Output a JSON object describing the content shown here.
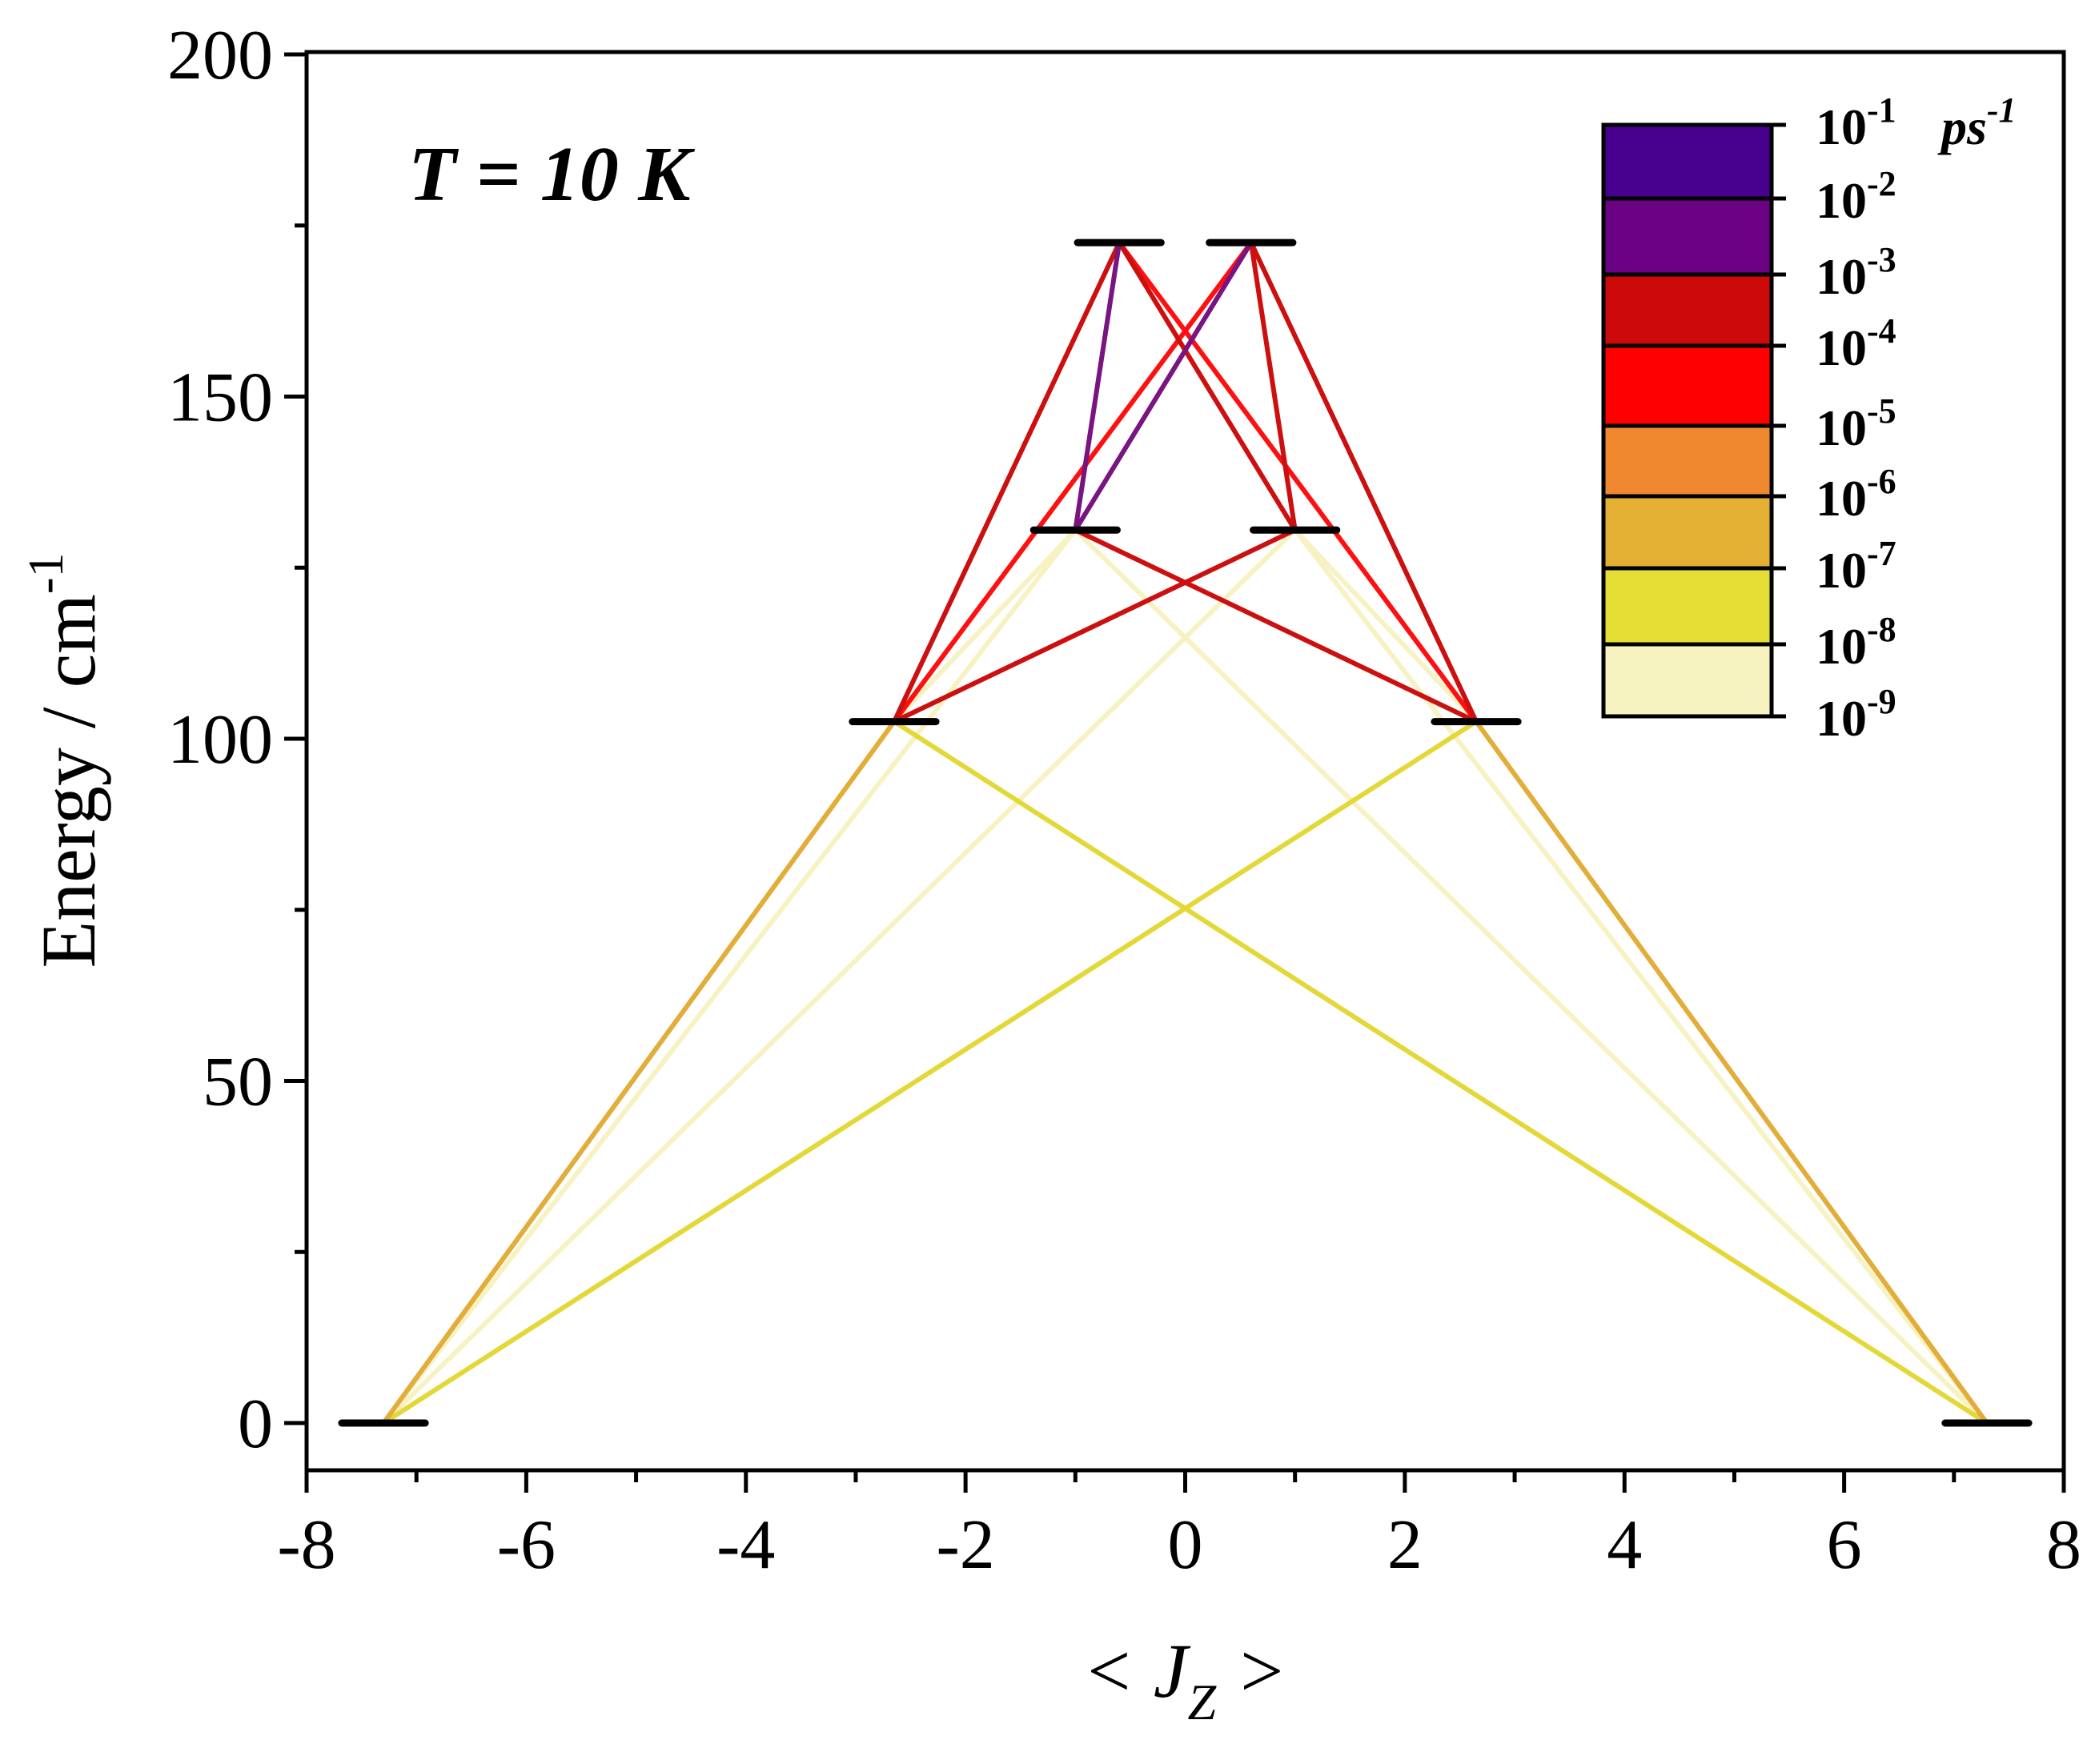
{
  "chart_data": {
    "type": "line",
    "annotation": "T = 10 K",
    "xlabel": {
      "pre": "< J",
      "sub": "Z",
      "post": " >"
    },
    "ylabel": {
      "main": "Energy / cm",
      "sup": "-1"
    },
    "xlim": [
      -8,
      8
    ],
    "ylim": [
      -7,
      200
    ],
    "x_ticks": [
      -8,
      -6,
      -4,
      -2,
      0,
      2,
      4,
      6,
      8
    ],
    "x_tick_labels": [
      "-8",
      "-6",
      "-4",
      "-2",
      "0",
      "2",
      "4",
      "6",
      "8"
    ],
    "y_ticks": [
      0,
      50,
      100,
      150,
      200
    ],
    "y_tick_labels": [
      "0",
      "50",
      "100",
      "150",
      "200"
    ],
    "levels": [
      {
        "jz": -7.3,
        "energy": 0
      },
      {
        "jz": 7.3,
        "energy": 0
      },
      {
        "jz": -2.65,
        "energy": 102.5
      },
      {
        "jz": 2.65,
        "energy": 102.5
      },
      {
        "jz": -1.0,
        "energy": 130.5
      },
      {
        "jz": 1.0,
        "energy": 130.5
      },
      {
        "jz": -0.6,
        "energy": 172.5
      },
      {
        "jz": 0.6,
        "energy": 172.5
      }
    ],
    "transitions": [
      {
        "from": [
          -7.3,
          0
        ],
        "to": [
          -2.65,
          102.5
        ],
        "rate_exp": -7
      },
      {
        "from": [
          7.3,
          0
        ],
        "to": [
          2.65,
          102.5
        ],
        "rate_exp": -7
      },
      {
        "from": [
          -7.3,
          0
        ],
        "to": [
          2.65,
          102.5
        ],
        "rate_exp": -8
      },
      {
        "from": [
          7.3,
          0
        ],
        "to": [
          -2.65,
          102.5
        ],
        "rate_exp": -8
      },
      {
        "from": [
          -7.3,
          0
        ],
        "to": [
          -1.0,
          130.5
        ],
        "rate_exp": -9
      },
      {
        "from": [
          7.3,
          0
        ],
        "to": [
          1.0,
          130.5
        ],
        "rate_exp": -9
      },
      {
        "from": [
          -7.3,
          0
        ],
        "to": [
          1.0,
          130.5
        ],
        "rate_exp": -9
      },
      {
        "from": [
          7.3,
          0
        ],
        "to": [
          -1.0,
          130.5
        ],
        "rate_exp": -9
      },
      {
        "from": [
          -2.65,
          102.5
        ],
        "to": [
          -1.0,
          130.5
        ],
        "rate_exp": -9
      },
      {
        "from": [
          2.65,
          102.5
        ],
        "to": [
          1.0,
          130.5
        ],
        "rate_exp": -9
      },
      {
        "from": [
          -2.65,
          102.5
        ],
        "to": [
          1.0,
          130.5
        ],
        "rate_exp": -4
      },
      {
        "from": [
          2.65,
          102.5
        ],
        "to": [
          -1.0,
          130.5
        ],
        "rate_exp": -4
      },
      {
        "from": [
          -2.65,
          102.5
        ],
        "to": [
          -0.6,
          172.5
        ],
        "rate_exp": -4
      },
      {
        "from": [
          -2.65,
          102.5
        ],
        "to": [
          0.6,
          172.5
        ],
        "rate_exp": -5
      },
      {
        "from": [
          2.65,
          102.5
        ],
        "to": [
          0.6,
          172.5
        ],
        "rate_exp": -4
      },
      {
        "from": [
          2.65,
          102.5
        ],
        "to": [
          -0.6,
          172.5
        ],
        "rate_exp": -5
      },
      {
        "from": [
          -1.0,
          130.5
        ],
        "to": [
          -0.6,
          172.5
        ],
        "rate_exp": -3
      },
      {
        "from": [
          1.0,
          130.5
        ],
        "to": [
          0.6,
          172.5
        ],
        "rate_exp": -4
      },
      {
        "from": [
          -1.0,
          130.5
        ],
        "to": [
          0.6,
          172.5
        ],
        "rate_exp": -3
      },
      {
        "from": [
          1.0,
          130.5
        ],
        "to": [
          -0.6,
          172.5
        ],
        "rate_exp": -4
      }
    ],
    "colorbar": {
      "unit": "ps",
      "unit_sup": "-1",
      "ticks": [
        {
          "base": "10",
          "exp": "-1"
        },
        {
          "base": "10",
          "exp": "-2"
        },
        {
          "base": "10",
          "exp": "-3"
        },
        {
          "base": "10",
          "exp": "-4"
        },
        {
          "base": "10",
          "exp": "-5"
        },
        {
          "base": "10",
          "exp": "-6"
        },
        {
          "base": "10",
          "exp": "-7"
        },
        {
          "base": "10",
          "exp": "-8"
        },
        {
          "base": "10",
          "exp": "-9"
        }
      ],
      "bands": [
        {
          "rate_exp": -1,
          "color": "#48008f"
        },
        {
          "rate_exp": -2,
          "color": "#6a0283"
        },
        {
          "rate_exp": -3,
          "color": "#cc0a0a"
        },
        {
          "rate_exp": -4,
          "color": "#fe0000"
        },
        {
          "rate_exp": -5,
          "color": "#f08830"
        },
        {
          "rate_exp": -6,
          "color": "#e4b033"
        },
        {
          "rate_exp": -7,
          "color": "#e3dd34"
        },
        {
          "rate_exp": -8,
          "color": "#f7f3c0"
        }
      ]
    },
    "rate_colors": {
      "-2": "#7a1480",
      "-3": "#7a1480",
      "-4": "#cc1010",
      "-5": "#fe1010",
      "-6": "#f08830",
      "-7": "#e2ad38",
      "-8": "#e3d838",
      "-9": "#f7f2c2"
    }
  }
}
